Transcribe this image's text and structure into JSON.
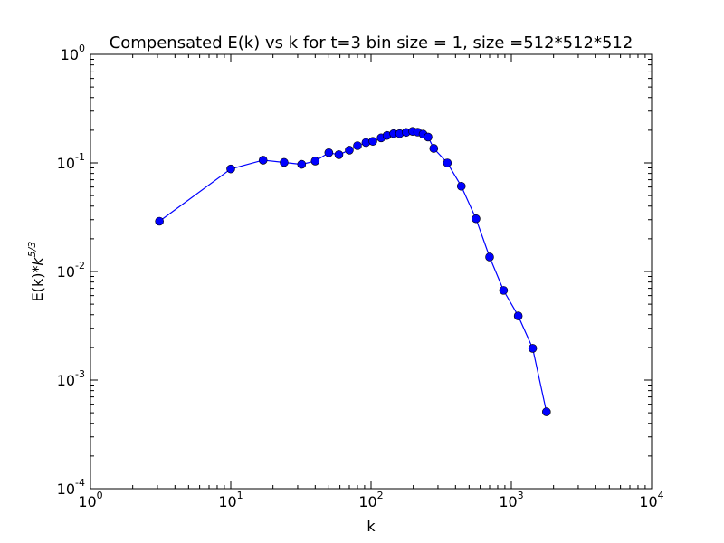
{
  "chart_data": {
    "type": "line",
    "title": "Compensated E(k) vs k for t=3 bin size = 1, size =512*512*512",
    "xlabel": "k",
    "ylabel": "E(k)*k^(5/3)",
    "ylabel_parts": {
      "prefix": "E(k)*",
      "base": "k",
      "exponent": "5/3"
    },
    "xscale": "log",
    "yscale": "log",
    "xlim": [
      1,
      10000
    ],
    "ylim": [
      0.0001,
      1
    ],
    "grid": false,
    "x_ticks": [
      {
        "value": 1,
        "base": "10",
        "exp": "0"
      },
      {
        "value": 10,
        "base": "10",
        "exp": "1"
      },
      {
        "value": 100,
        "base": "10",
        "exp": "2"
      },
      {
        "value": 1000,
        "base": "10",
        "exp": "3"
      },
      {
        "value": 10000,
        "base": "10",
        "exp": "4"
      }
    ],
    "y_ticks": [
      {
        "value": 1,
        "base": "10",
        "exp": "0"
      },
      {
        "value": 0.1,
        "base": "10",
        "exp": "-1"
      },
      {
        "value": 0.01,
        "base": "10",
        "exp": "-2"
      },
      {
        "value": 0.001,
        "base": "10",
        "exp": "-3"
      },
      {
        "value": 0.0001,
        "base": "10",
        "exp": "-4"
      }
    ],
    "series": [
      {
        "color": "#0000ff",
        "marker": "circle",
        "points": [
          {
            "x": 3.1,
            "y": 0.029
          },
          {
            "x": 10,
            "y": 0.088
          },
          {
            "x": 17,
            "y": 0.106
          },
          {
            "x": 24,
            "y": 0.101
          },
          {
            "x": 32,
            "y": 0.097
          },
          {
            "x": 40,
            "y": 0.104
          },
          {
            "x": 50,
            "y": 0.124
          },
          {
            "x": 59,
            "y": 0.119
          },
          {
            "x": 70,
            "y": 0.131
          },
          {
            "x": 80,
            "y": 0.144
          },
          {
            "x": 92,
            "y": 0.154
          },
          {
            "x": 103,
            "y": 0.158
          },
          {
            "x": 118,
            "y": 0.17
          },
          {
            "x": 130,
            "y": 0.179
          },
          {
            "x": 145,
            "y": 0.186
          },
          {
            "x": 160,
            "y": 0.186
          },
          {
            "x": 178,
            "y": 0.191
          },
          {
            "x": 198,
            "y": 0.195
          },
          {
            "x": 215,
            "y": 0.192
          },
          {
            "x": 235,
            "y": 0.184
          },
          {
            "x": 255,
            "y": 0.173
          },
          {
            "x": 280,
            "y": 0.136
          },
          {
            "x": 350,
            "y": 0.1
          },
          {
            "x": 440,
            "y": 0.061
          },
          {
            "x": 560,
            "y": 0.0306
          },
          {
            "x": 700,
            "y": 0.0136
          },
          {
            "x": 880,
            "y": 0.0067
          },
          {
            "x": 1120,
            "y": 0.0039
          },
          {
            "x": 1420,
            "y": 0.00196
          },
          {
            "x": 1780,
            "y": 0.00051
          }
        ]
      }
    ]
  }
}
